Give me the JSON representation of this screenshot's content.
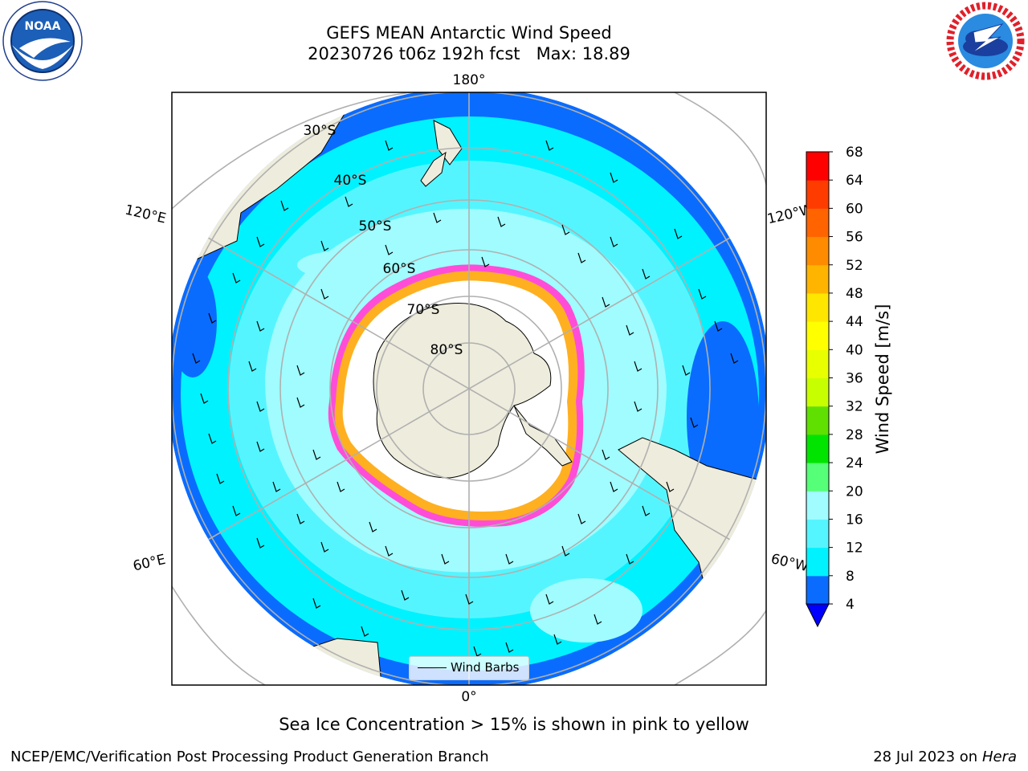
{
  "header": {
    "title_line1": "GEFS MEAN Antarctic Wind Speed",
    "title_line2": "20230726 t06z 192h fcst   Max: 18.89"
  },
  "logos": {
    "left": "noaa-logo",
    "left_text": "NOAA",
    "right": "national-weather-service-logo"
  },
  "map": {
    "projection": "south-polar-stereographic",
    "meridian_labels": {
      "top": "180°",
      "bottom": "0°",
      "upper_left": "120°E",
      "lower_left": "60°E",
      "upper_right": "120°W",
      "lower_right": "60°W"
    },
    "latitude_labels": [
      "30°S",
      "40°S",
      "50°S",
      "60°S",
      "70°S",
      "80°S"
    ],
    "colors": {
      "land": "#eeecdc",
      "ocean_4_8": "#0a6cff",
      "ocean_8_12": "#00f2ff",
      "ocean_12_16": "#55f5ff",
      "ocean_16_20": "#a0fcff",
      "sea_ice": "#ffffff",
      "ice_edge_pink": "#ff4dd8",
      "ice_edge_yellow": "#ffb020"
    },
    "legend_label": "Wind Barbs"
  },
  "colorbar": {
    "label": "Wind Speed [m/s]",
    "ticks": [
      "4",
      "8",
      "12",
      "16",
      "20",
      "24",
      "28",
      "32",
      "36",
      "40",
      "44",
      "48",
      "52",
      "56",
      "60",
      "64",
      "68"
    ],
    "colors": [
      "#0a6cff",
      "#00f2ff",
      "#55f5ff",
      "#a0fcff",
      "#55ff77",
      "#00e400",
      "#5fe000",
      "#c8ff00",
      "#e8ff00",
      "#ffff00",
      "#ffe600",
      "#ffb400",
      "#ff8c00",
      "#ff6400",
      "#ff3c00",
      "#ff0000"
    ],
    "extend_color": "#0000ff"
  },
  "notes": {
    "sea_ice": "Sea Ice Concentration > 15% is shown in pink to yellow"
  },
  "footer": {
    "left": "NCEP/EMC/Verification Post Processing Product Generation Branch",
    "date": "28 Jul 2023 on",
    "machine": "Hera"
  }
}
